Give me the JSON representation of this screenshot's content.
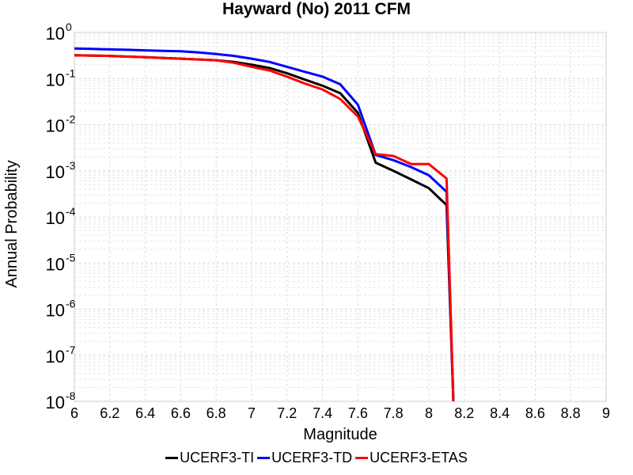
{
  "chart_data": {
    "type": "line",
    "title": "Hayward (No) 2011 CFM",
    "xlabel": "Magnitude",
    "ylabel": "Annual Probability",
    "xlim": [
      6,
      9
    ],
    "ylim": [
      1e-08,
      1
    ],
    "yscale": "log",
    "xticks": [
      "6",
      "6.2",
      "6.4",
      "6.6",
      "6.8",
      "7",
      "7.2",
      "7.4",
      "7.6",
      "7.8",
      "8",
      "8.2",
      "8.4",
      "8.6",
      "8.8",
      "9"
    ],
    "yticks": [
      {
        "base": "10",
        "exp": "0"
      },
      {
        "base": "10",
        "exp": "-1"
      },
      {
        "base": "10",
        "exp": "-2"
      },
      {
        "base": "10",
        "exp": "-3"
      },
      {
        "base": "10",
        "exp": "-4"
      },
      {
        "base": "10",
        "exp": "-5"
      },
      {
        "base": "10",
        "exp": "-6"
      },
      {
        "base": "10",
        "exp": "-7"
      },
      {
        "base": "10",
        "exp": "-8"
      }
    ],
    "grid": true,
    "legend_position": "bottom",
    "series": [
      {
        "name": "UCERF3-TI",
        "color": "#000000",
        "x": [
          6.0,
          6.1,
          6.2,
          6.3,
          6.4,
          6.5,
          6.6,
          6.7,
          6.8,
          6.9,
          7.0,
          7.1,
          7.2,
          7.3,
          7.4,
          7.5,
          7.6,
          7.7,
          7.8,
          7.9,
          8.0,
          8.1,
          8.14
        ],
        "y": [
          0.32,
          0.315,
          0.31,
          0.3,
          0.29,
          0.28,
          0.27,
          0.26,
          0.25,
          0.23,
          0.2,
          0.17,
          0.13,
          0.095,
          0.07,
          0.048,
          0.018,
          0.0015,
          0.001,
          0.00065,
          0.00042,
          0.00018,
          6e-09
        ]
      },
      {
        "name": "UCERF3-TD",
        "color": "#0000ff",
        "x": [
          6.0,
          6.1,
          6.2,
          6.3,
          6.4,
          6.5,
          6.6,
          6.7,
          6.8,
          6.9,
          7.0,
          7.1,
          7.2,
          7.3,
          7.4,
          7.5,
          7.6,
          7.7,
          7.8,
          7.9,
          8.0,
          8.1,
          8.14
        ],
        "y": [
          0.45,
          0.44,
          0.43,
          0.42,
          0.41,
          0.4,
          0.39,
          0.37,
          0.34,
          0.31,
          0.27,
          0.23,
          0.18,
          0.14,
          0.11,
          0.075,
          0.027,
          0.0022,
          0.0017,
          0.0012,
          0.0008,
          0.00035,
          6e-09
        ]
      },
      {
        "name": "UCERF3-ETAS",
        "color": "#ff0000",
        "x": [
          6.0,
          6.1,
          6.2,
          6.3,
          6.4,
          6.5,
          6.6,
          6.7,
          6.8,
          6.9,
          7.0,
          7.1,
          7.2,
          7.3,
          7.4,
          7.5,
          7.6,
          7.7,
          7.8,
          7.9,
          8.0,
          8.1,
          8.14
        ],
        "y": [
          0.32,
          0.315,
          0.31,
          0.3,
          0.29,
          0.28,
          0.27,
          0.26,
          0.25,
          0.22,
          0.18,
          0.15,
          0.11,
          0.078,
          0.058,
          0.036,
          0.015,
          0.0023,
          0.0021,
          0.0014,
          0.0014,
          0.00068,
          6e-09
        ]
      }
    ]
  }
}
